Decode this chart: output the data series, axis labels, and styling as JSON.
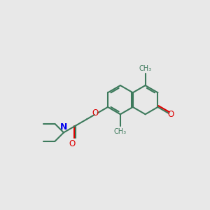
{
  "bg_color": "#e8e8e8",
  "bond_color": "#3d7a5c",
  "N_color": "#0000ee",
  "O_color": "#dd0000",
  "line_width": 1.5,
  "font_size": 8.5,
  "xlim": [
    0,
    10
  ],
  "ylim": [
    0,
    10
  ]
}
